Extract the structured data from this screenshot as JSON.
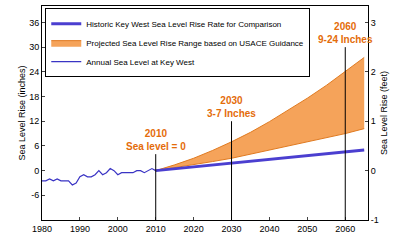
{
  "chart_data": {
    "type": "line",
    "x_label": null,
    "y_label": "Sea Level Rise (inches)",
    "y2_label": "Sea Level Rise (feet)",
    "xlim": [
      1980,
      2066
    ],
    "xticks": [
      1980,
      1990,
      2000,
      2010,
      2020,
      2030,
      2040,
      2050,
      2060
    ],
    "ylim": [
      -12,
      40
    ],
    "yticks": [
      -6,
      0,
      6,
      12,
      18,
      24,
      30,
      36
    ],
    "y2lim": [
      -1,
      3.3333
    ],
    "y2ticks": [
      -1,
      0,
      1,
      2,
      3
    ],
    "grid": false,
    "legend": "upper left",
    "series": [
      {
        "name": "Annual Sea Level at Key West",
        "type": "line",
        "color": "#3a34c4",
        "x": [
          1980,
          1981,
          1982,
          1983,
          1984,
          1985,
          1986,
          1987,
          1988,
          1989,
          1990,
          1991,
          1992,
          1993,
          1994,
          1995,
          1996,
          1997,
          1998,
          1999,
          2000,
          2001,
          2002,
          2003,
          2004,
          2005,
          2006,
          2007,
          2008,
          2009,
          2010
        ],
        "values": [
          -2.5,
          -2.5,
          -2,
          -2.5,
          -2,
          -2.5,
          -2.5,
          -2.5,
          -3.5,
          -3,
          -1.5,
          -1,
          -1.5,
          -1.5,
          -1,
          0,
          -1,
          -0.5,
          0.5,
          0,
          -1,
          -0.5,
          -0.5,
          -0.5,
          -0.5,
          0,
          0,
          -0.5,
          0,
          0.5,
          0
        ]
      },
      {
        "name": "Projected Sea Level Rise Range based on USACE Guidance",
        "type": "range",
        "color": "#f5a35a",
        "x": [
          2010,
          2015,
          2020,
          2025,
          2030,
          2035,
          2040,
          2045,
          2050,
          2055,
          2060,
          2065
        ],
        "low": [
          0,
          0.7,
          1.5,
          2.2,
          3,
          4,
          5,
          6,
          7,
          8,
          9,
          10.2
        ],
        "high": [
          0,
          1.4,
          3,
          4.9,
          7,
          9.3,
          11.9,
          14.7,
          17.6,
          20.7,
          24,
          27.5
        ]
      },
      {
        "name": "Historic Key West Sea Level Rise Rate for Comparison",
        "type": "line",
        "color": "#4b3fd0",
        "x": [
          2010,
          2065
        ],
        "values": [
          0,
          5
        ]
      }
    ],
    "annotations": [
      {
        "text": [
          "2010",
          "Sea level = 0"
        ],
        "x": 2010,
        "y": 4,
        "color": "#e46c0a"
      },
      {
        "text": [
          "2030",
          "3-7 Inches"
        ],
        "x": 2030,
        "y": 12,
        "color": "#e46c0a"
      },
      {
        "text": [
          "2060",
          "9-24 Inches"
        ],
        "x": 2060,
        "y": 30,
        "color": "#e46c0a"
      }
    ]
  }
}
